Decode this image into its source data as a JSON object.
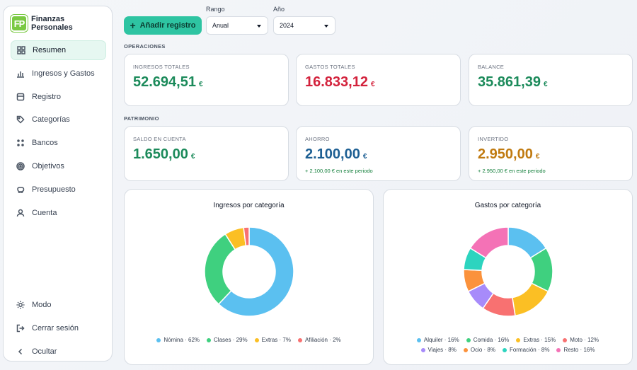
{
  "brand": {
    "logo": "FP",
    "name": "Finanzas Personales"
  },
  "nav": [
    {
      "label": "Resumen",
      "icon": "dashboard-icon",
      "active": true
    },
    {
      "label": "Ingresos y Gastos",
      "icon": "bar-chart-icon"
    },
    {
      "label": "Registro",
      "icon": "database-icon"
    },
    {
      "label": "Categorías",
      "icon": "tag-icon"
    },
    {
      "label": "Bancos",
      "icon": "dots-icon"
    },
    {
      "label": "Objetivos",
      "icon": "target-icon"
    },
    {
      "label": "Presupuesto",
      "icon": "piggy-bank-icon"
    },
    {
      "label": "Cuenta",
      "icon": "user-icon"
    }
  ],
  "bottom_nav": [
    {
      "label": "Modo",
      "icon": "sun-icon"
    },
    {
      "label": "Cerrar sesión",
      "icon": "logout-icon"
    },
    {
      "label": "Ocultar",
      "icon": "chevron-left-icon"
    }
  ],
  "toolbar": {
    "add_label": "Añadir registro",
    "range_label": "Rango",
    "range_value": "Anual",
    "year_label": "Año",
    "year_value": "2024"
  },
  "operaciones": {
    "title": "OPERACIONES",
    "ingresos": {
      "label": "INGRESOS TOTALES",
      "value": "52.694,51",
      "currency": "€"
    },
    "gastos": {
      "label": "GASTOS TOTALES",
      "value": "16.833,12",
      "currency": "€"
    },
    "balance": {
      "label": "BALANCE",
      "value": "35.861,39",
      "currency": "€"
    }
  },
  "patrimonio": {
    "title": "PATRIMONIO",
    "saldo": {
      "label": "SALDO EN CUENTA",
      "value": "1.650,00",
      "currency": "€"
    },
    "ahorro": {
      "label": "AHORRO",
      "value": "2.100,00",
      "currency": "€",
      "sub": "+ 2.100,00 € en este periodo"
    },
    "invertido": {
      "label": "INVERTIDO",
      "value": "2.950,00",
      "currency": "€",
      "sub": "+ 2.950,00 € en este periodo"
    }
  },
  "chart_data": [
    {
      "type": "pie",
      "title": "Ingresos por categoría",
      "slices": [
        {
          "name": "Nómina",
          "value": 62,
          "label": "Nómina · 62%",
          "color": "#5bc0f0"
        },
        {
          "name": "Clases",
          "value": 29,
          "label": "Clases · 29%",
          "color": "#3fd07f"
        },
        {
          "name": "Extras",
          "value": 7,
          "label": "Extras · 7%",
          "color": "#fbbf24"
        },
        {
          "name": "Afiliación",
          "value": 2,
          "label": "Afiliación · 2%",
          "color": "#f87171"
        }
      ]
    },
    {
      "type": "pie",
      "title": "Gastos por categoría",
      "slices": [
        {
          "name": "Alquiler",
          "value": 16,
          "label": "Alquiler · 16%",
          "color": "#5bc0f0"
        },
        {
          "name": "Comida",
          "value": 16,
          "label": "Comida · 16%",
          "color": "#3fd07f"
        },
        {
          "name": "Extras",
          "value": 15,
          "label": "Extras · 15%",
          "color": "#fbbf24"
        },
        {
          "name": "Moto",
          "value": 12,
          "label": "Moto · 12%",
          "color": "#f87171"
        },
        {
          "name": "Viajes",
          "value": 8,
          "label": "Viajes · 8%",
          "color": "#a78bfa"
        },
        {
          "name": "Ocio",
          "value": 8,
          "label": "Ocio · 8%",
          "color": "#fb923c"
        },
        {
          "name": "Formación",
          "value": 8,
          "label": "Formación · 8%",
          "color": "#2dd4bf"
        },
        {
          "name": "Resto",
          "value": 16,
          "label": "Resto · 16%",
          "color": "#f472b6"
        }
      ]
    }
  ]
}
